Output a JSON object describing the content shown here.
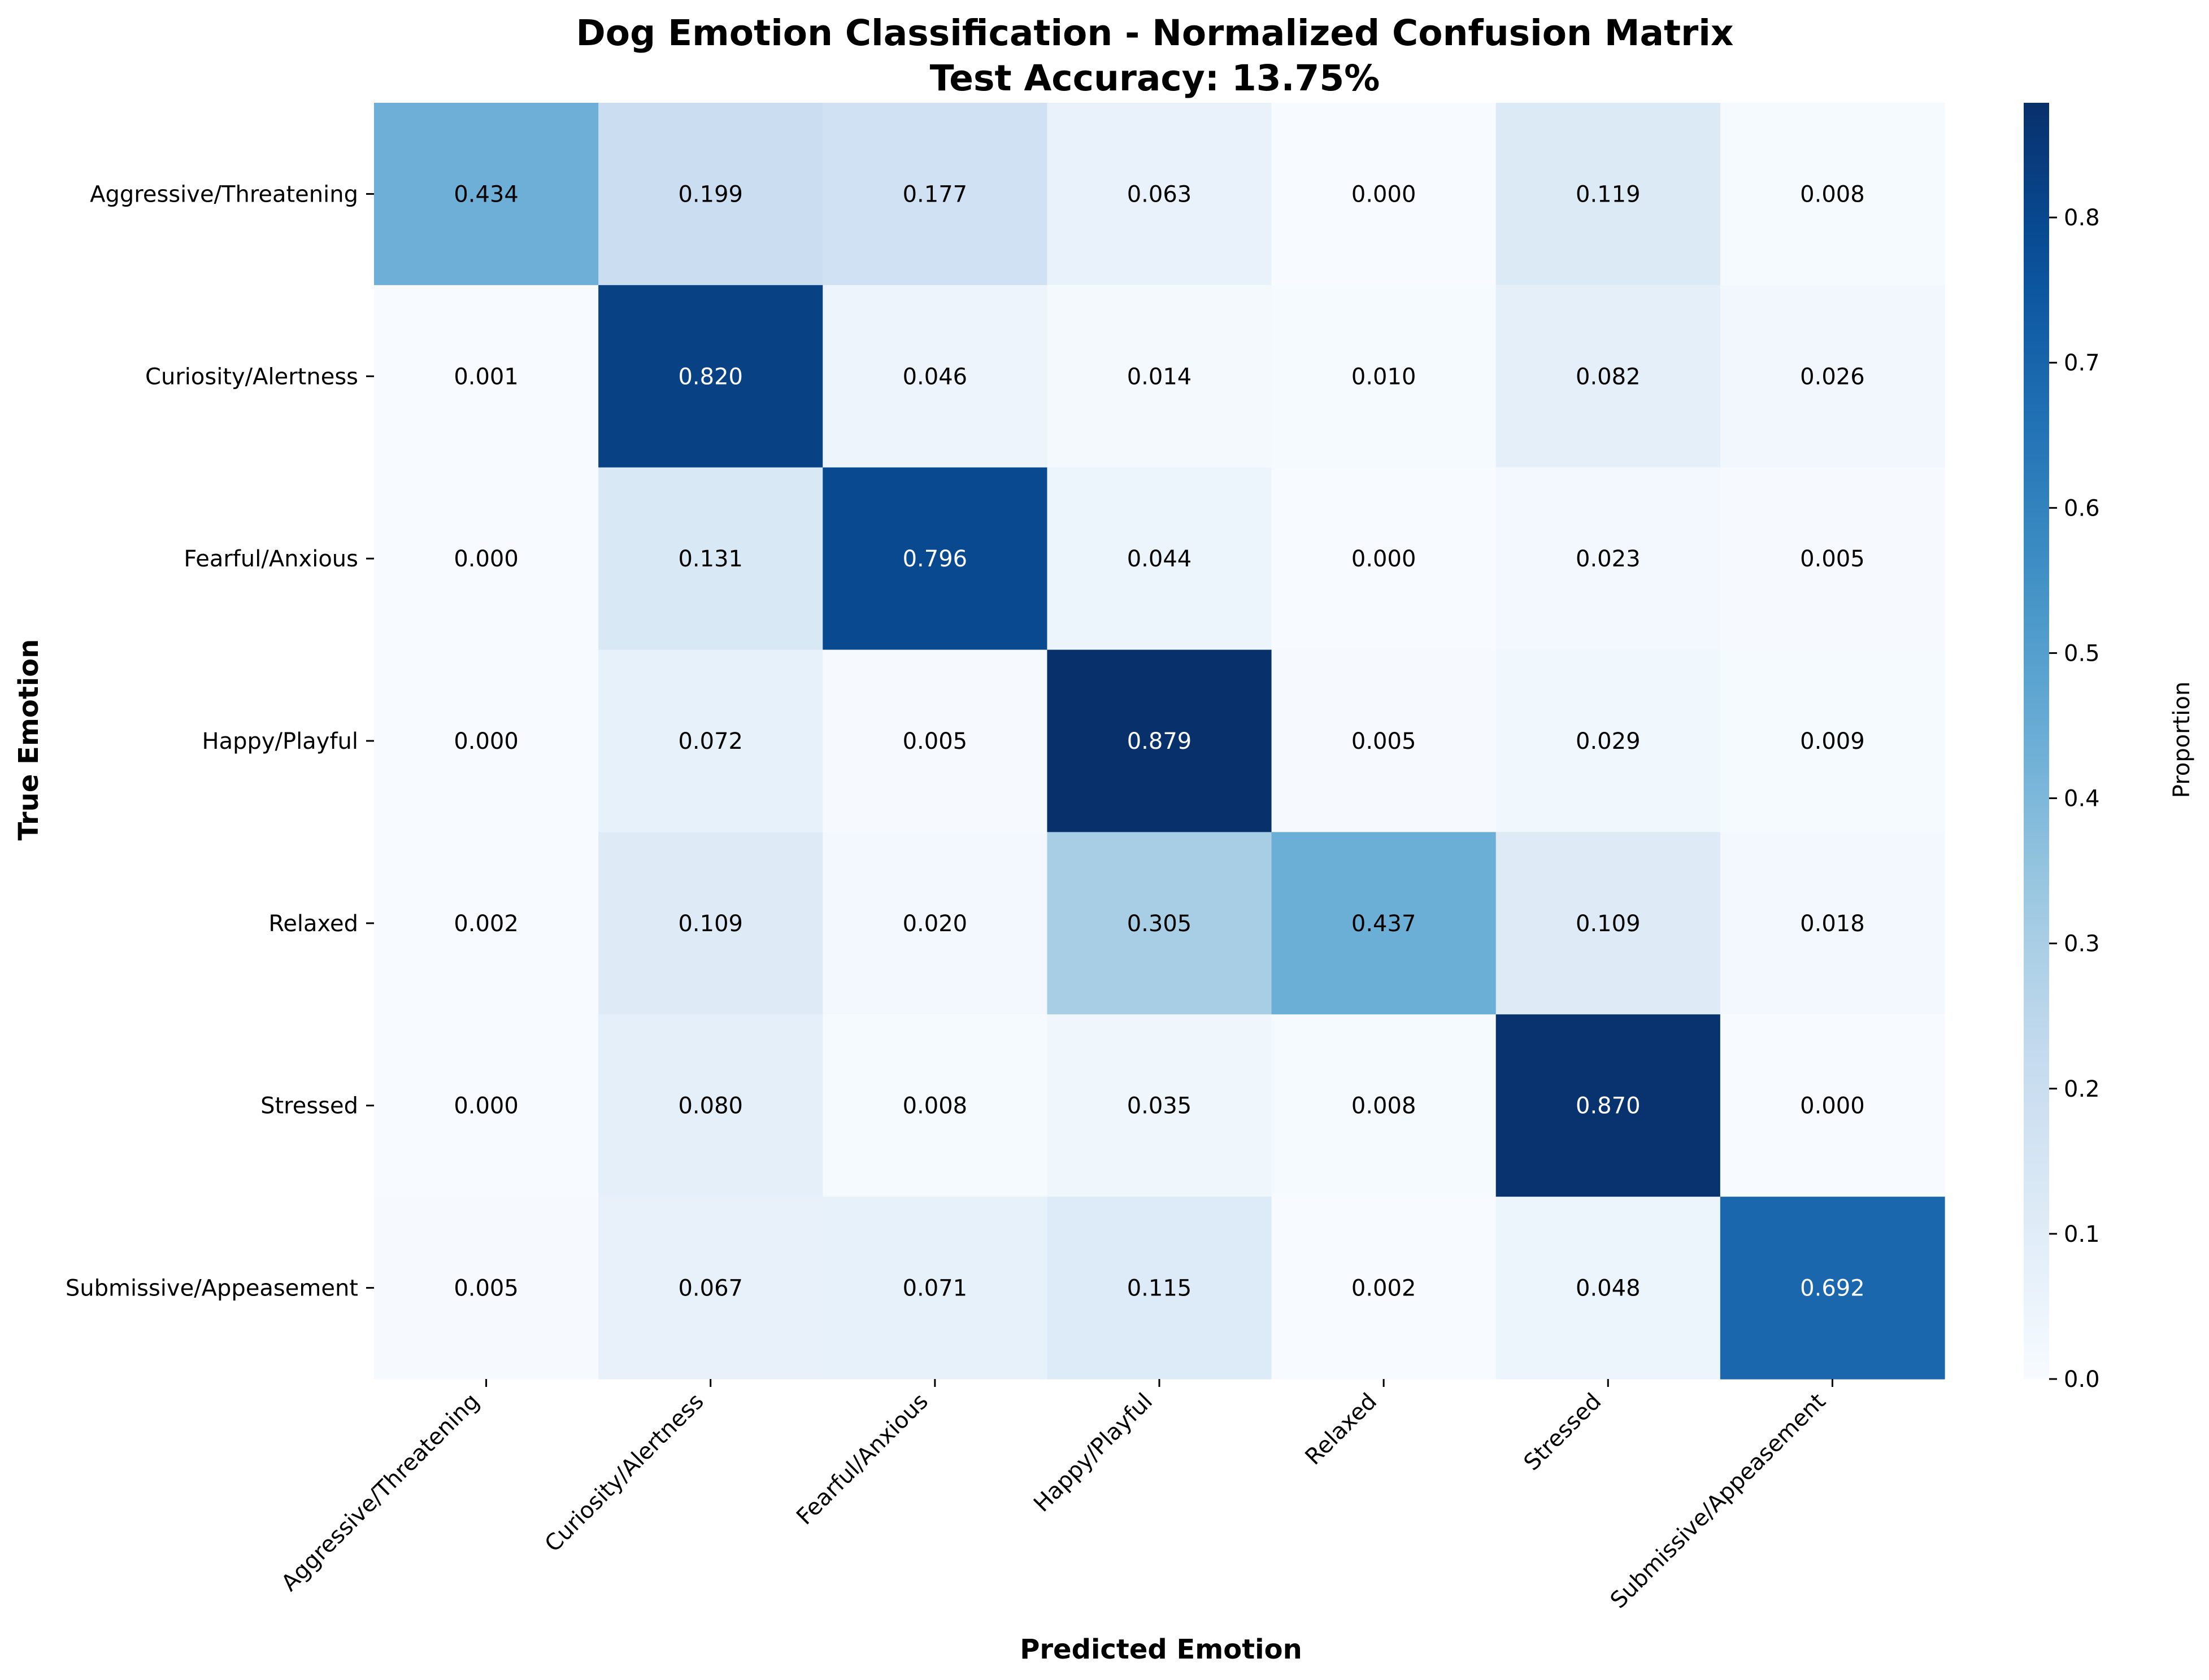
{
  "chart_data": {
    "type": "heatmap",
    "title": "Dog Emotion Classification - Normalized Confusion Matrix",
    "subtitle": "Test Accuracy: 13.75%",
    "xlabel": "Predicted Emotion",
    "ylabel": "True Emotion",
    "row_labels": [
      "Aggressive/Threatening",
      "Curiosity/Alertness",
      "Fearful/Anxious",
      "Happy/Playful",
      "Relaxed",
      "Stressed",
      "Submissive/Appeasement"
    ],
    "col_labels": [
      "Aggressive/Threatening",
      "Curiosity/Alertness",
      "Fearful/Anxious",
      "Happy/Playful",
      "Relaxed",
      "Stressed",
      "Submissive/Appeasement"
    ],
    "values": [
      [
        0.434,
        0.199,
        0.177,
        0.063,
        0.0,
        0.119,
        0.008
      ],
      [
        0.001,
        0.82,
        0.046,
        0.014,
        0.01,
        0.082,
        0.026
      ],
      [
        0.0,
        0.131,
        0.796,
        0.044,
        0.0,
        0.023,
        0.005
      ],
      [
        0.0,
        0.072,
        0.005,
        0.879,
        0.005,
        0.029,
        0.009
      ],
      [
        0.002,
        0.109,
        0.02,
        0.305,
        0.437,
        0.109,
        0.018
      ],
      [
        0.0,
        0.08,
        0.008,
        0.035,
        0.008,
        0.87,
        0.0
      ],
      [
        0.005,
        0.067,
        0.071,
        0.115,
        0.002,
        0.048,
        0.692
      ]
    ],
    "colormap": "Blues",
    "colorbar": {
      "label": "Proportion",
      "range": [
        0,
        0.879
      ],
      "ticks": [
        "0.0",
        "0.1",
        "0.2",
        "0.3",
        "0.4",
        "0.5",
        "0.6",
        "0.7",
        "0.8"
      ]
    },
    "colors": {
      "low": "#f7fbff",
      "high": "#08306b",
      "light_text": "#ffffff",
      "dark_text": "#000000"
    }
  }
}
